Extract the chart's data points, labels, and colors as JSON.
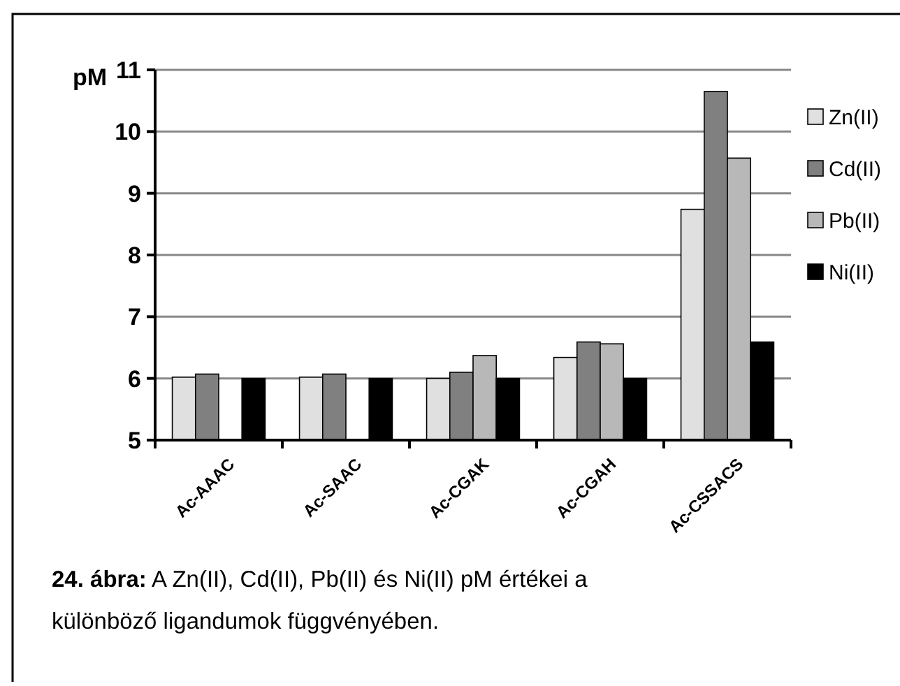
{
  "chart_data": {
    "type": "bar",
    "ylabel": "pM",
    "categories": [
      "Ac-AAAC",
      "Ac-SAAC",
      "Ac-CGAK",
      "Ac-CGAH",
      "Ac-CSSACS"
    ],
    "series": [
      {
        "name": "Zn(II)",
        "color": "#e0e0e0",
        "values": [
          6.02,
          6.02,
          6.0,
          6.34,
          8.74
        ]
      },
      {
        "name": "Cd(II)",
        "color": "#808080",
        "values": [
          6.07,
          6.07,
          6.1,
          6.59,
          10.65
        ]
      },
      {
        "name": "Pb(II)",
        "color": "#b8b8b8",
        "values": [
          null,
          null,
          6.37,
          6.56,
          9.57
        ]
      },
      {
        "name": "Ni(II)",
        "color": "#000000",
        "values": [
          6.0,
          6.0,
          6.0,
          6.0,
          6.59
        ]
      }
    ],
    "ylim": [
      5,
      11
    ],
    "yticks": [
      5,
      6,
      7,
      8,
      9,
      10,
      11
    ],
    "grid": "y",
    "legend": "right",
    "annotations": [
      "24. ábra: A Zn(II), Cd(II), Pb(II) és Ni(II) pM értékei a különböző ligandumok függvényében."
    ]
  }
}
